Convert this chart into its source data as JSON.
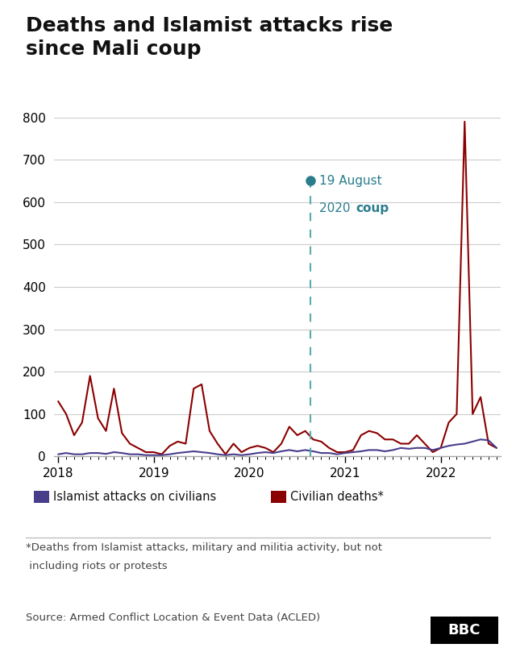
{
  "title": "Deaths and Islamist attacks rise\nsince Mali coup",
  "background_color": "#ffffff",
  "line_color_deaths": "#8b0000",
  "line_color_attacks": "#483d8b",
  "coup_line_color": "#5aabaa",
  "coup_dot_color": "#2a7d8c",
  "ylim": [
    0,
    800
  ],
  "yticks": [
    0,
    100,
    200,
    300,
    400,
    500,
    600,
    700,
    800
  ],
  "grid_color": "#cccccc",
  "coup_label_line1": "19 August",
  "coup_label_line2_normal": "2020 ",
  "coup_label_line2_bold": "coup",
  "legend_label_attacks": "Islamist attacks on civilians",
  "legend_label_deaths": "Civilian deaths*",
  "footnote_line1": "*Deaths from Islamist attacks, military and militia activity, but not",
  "footnote_line2": " including riots or protests",
  "source": "Source: Armed Conflict Location & Event Data (ACLED)",
  "civilian_deaths": [
    130,
    100,
    50,
    80,
    190,
    90,
    60,
    160,
    55,
    30,
    20,
    10,
    10,
    5,
    25,
    35,
    30,
    160,
    170,
    60,
    30,
    5,
    30,
    10,
    20,
    25,
    20,
    10,
    30,
    70,
    50,
    60,
    40,
    35,
    20,
    10,
    10,
    15,
    50,
    60,
    55,
    40,
    40,
    30,
    30,
    50,
    30,
    10,
    20,
    80,
    100,
    790,
    100,
    140,
    30,
    20
  ],
  "islamist_attacks": [
    5,
    8,
    5,
    5,
    8,
    8,
    6,
    10,
    8,
    5,
    5,
    3,
    3,
    3,
    5,
    8,
    10,
    12,
    10,
    8,
    5,
    3,
    5,
    3,
    5,
    8,
    10,
    8,
    12,
    15,
    12,
    15,
    12,
    8,
    8,
    5,
    8,
    10,
    12,
    15,
    15,
    12,
    15,
    20,
    18,
    20,
    20,
    15,
    20,
    25,
    28,
    30,
    35,
    40,
    38,
    20
  ],
  "xtick_years": [
    "2018",
    "2019",
    "2020",
    "2021",
    "2022"
  ],
  "xtick_positions": [
    0,
    12,
    24,
    36,
    48
  ],
  "coup_month_idx": 31.6,
  "coup_dot_y": 650
}
